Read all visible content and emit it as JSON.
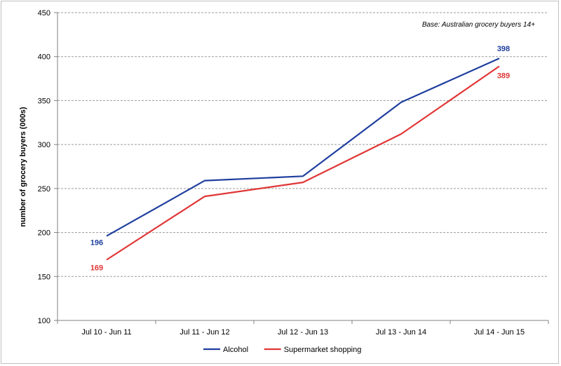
{
  "chart_data": {
    "type": "line",
    "title": "",
    "note": "Base: Australian grocery buyers 14+",
    "xlabel": "",
    "ylabel": "number of grocery buyers (000s)",
    "categories": [
      "Jul 10 - Jun 11",
      "Jul 11 - Jun 12",
      "Jul 12 - Jun 13",
      "Jul 13 - Jun 14",
      "Jul 14 - Jun 15"
    ],
    "ylim": [
      100,
      450
    ],
    "yticks": [
      100,
      150,
      200,
      250,
      300,
      350,
      400,
      450
    ],
    "grid": true,
    "legend_position": "bottom",
    "series": [
      {
        "name": "Alcohol",
        "color": "#1f3f9e",
        "values": [
          196,
          259,
          264,
          348,
          398
        ],
        "data_labels": {
          "0": "196",
          "4": "398"
        }
      },
      {
        "name": "Supermarket shopping",
        "color": "#e03636",
        "values": [
          169,
          241,
          257,
          312,
          389
        ],
        "data_labels": {
          "0": "169",
          "4": "389"
        }
      }
    ]
  }
}
